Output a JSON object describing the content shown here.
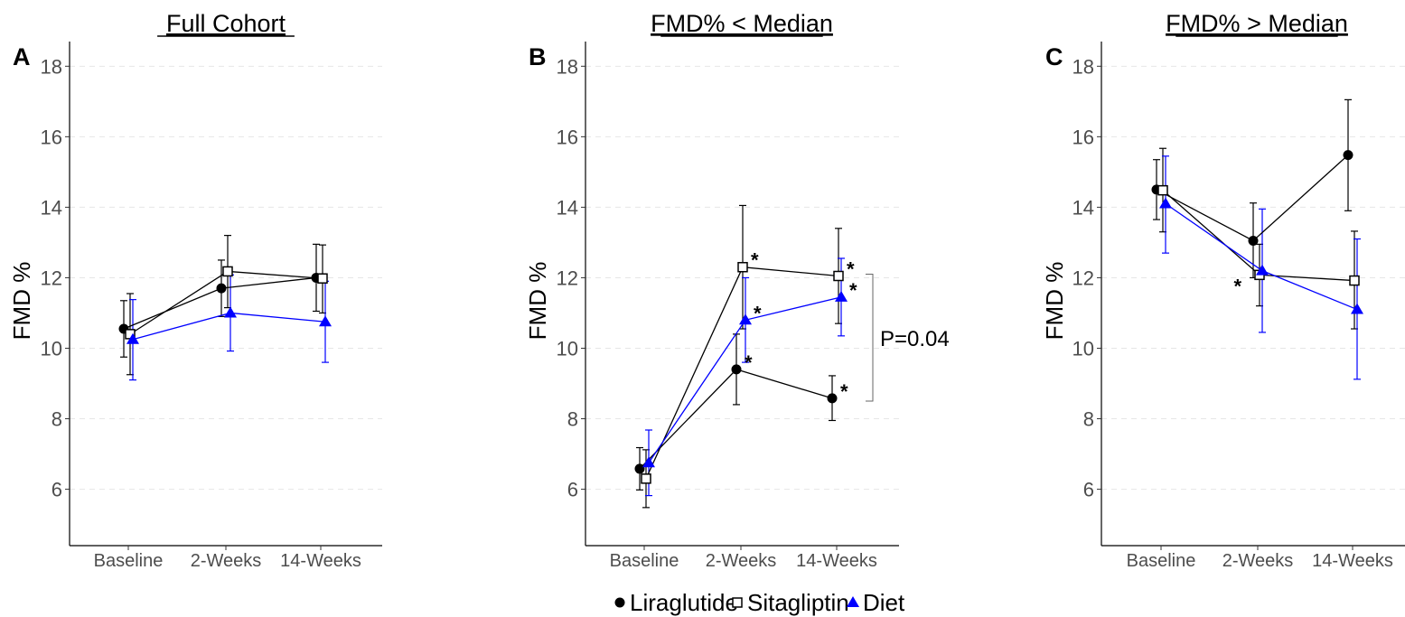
{
  "chart_data": [
    {
      "type": "line",
      "panel": "A",
      "title": "Full Cohort",
      "ylabel": "FMD %",
      "categories": [
        "Baseline",
        "2-Weeks",
        "14-Weeks"
      ],
      "ylim": [
        4.4,
        18.7
      ],
      "yticks": [
        6,
        8,
        10,
        12,
        14,
        16,
        18
      ],
      "grid": "horizontal-dashed",
      "series": [
        {
          "name": "Liraglutide",
          "color": "#000000",
          "marker": "filled-circle",
          "values": [
            10.55,
            11.7,
            12.0
          ],
          "lower": [
            9.75,
            10.9,
            11.05
          ],
          "upper": [
            11.35,
            12.5,
            12.95
          ]
        },
        {
          "name": "Sitagliptin",
          "color": "#000000",
          "marker": "open-square",
          "values": [
            10.4,
            12.18,
            11.98
          ],
          "lower": [
            9.25,
            11.15,
            11.0
          ],
          "upper": [
            11.55,
            13.2,
            12.93
          ]
        },
        {
          "name": "Diet",
          "color": "#0000ff",
          "marker": "filled-triangle",
          "values": [
            10.25,
            11.0,
            10.75
          ],
          "lower": [
            9.1,
            9.92,
            9.6
          ],
          "upper": [
            11.38,
            12.08,
            11.9
          ]
        }
      ],
      "stars": [],
      "bracket": null
    },
    {
      "type": "line",
      "panel": "B",
      "title": "FMD% < Median",
      "ylabel": "FMD %",
      "categories": [
        "Baseline",
        "2-Weeks",
        "14-Weeks"
      ],
      "ylim": [
        4.4,
        18.7
      ],
      "yticks": [
        6,
        8,
        10,
        12,
        14,
        16,
        18
      ],
      "grid": "horizontal-dashed",
      "series": [
        {
          "name": "Liraglutide",
          "color": "#000000",
          "marker": "filled-circle",
          "values": [
            6.58,
            9.4,
            8.58
          ],
          "lower": [
            5.98,
            8.4,
            7.95
          ],
          "upper": [
            7.18,
            10.4,
            9.22
          ]
        },
        {
          "name": "Sitagliptin",
          "color": "#000000",
          "marker": "open-square",
          "values": [
            6.3,
            12.3,
            12.05
          ],
          "lower": [
            5.48,
            10.55,
            10.7
          ],
          "upper": [
            7.12,
            14.05,
            13.4
          ]
        },
        {
          "name": "Diet",
          "color": "#0000ff",
          "marker": "filled-triangle",
          "values": [
            6.75,
            10.8,
            11.45
          ],
          "lower": [
            5.82,
            9.6,
            10.35
          ],
          "upper": [
            7.68,
            12.0,
            12.55
          ]
        }
      ],
      "stars": [
        {
          "series": "Sitagliptin",
          "index": 1,
          "text": "*"
        },
        {
          "series": "Diet",
          "index": 1,
          "text": "*"
        },
        {
          "series": "Liraglutide",
          "index": 1,
          "text": "*"
        },
        {
          "series": "Sitagliptin",
          "index": 2,
          "text": "*"
        },
        {
          "series": "Diet",
          "index": 2,
          "text": "*"
        },
        {
          "series": "Liraglutide",
          "index": 2,
          "text": "*"
        }
      ],
      "bracket": {
        "from": 12.1,
        "to": 8.5,
        "label": "P=0.04"
      }
    },
    {
      "type": "line",
      "panel": "C",
      "title": "FMD% > Median",
      "ylabel": "FMD %",
      "categories": [
        "Baseline",
        "2-Weeks",
        "14-Weeks"
      ],
      "ylim": [
        4.4,
        18.7
      ],
      "yticks": [
        6,
        8,
        10,
        12,
        14,
        16,
        18
      ],
      "grid": "horizontal-dashed",
      "series": [
        {
          "name": "Liraglutide",
          "color": "#000000",
          "marker": "filled-circle",
          "values": [
            14.5,
            13.05,
            15.48
          ],
          "lower": [
            13.65,
            12.0,
            13.9
          ],
          "upper": [
            15.35,
            14.12,
            17.05
          ]
        },
        {
          "name": "Sitagliptin",
          "color": "#000000",
          "marker": "open-square",
          "values": [
            14.48,
            12.08,
            11.92
          ],
          "lower": [
            13.3,
            11.2,
            10.55
          ],
          "upper": [
            15.67,
            12.95,
            13.32
          ]
        },
        {
          "name": "Diet",
          "color": "#0000ff",
          "marker": "filled-triangle",
          "values": [
            14.1,
            12.2,
            11.1
          ],
          "lower": [
            12.7,
            10.45,
            9.12
          ],
          "upper": [
            15.45,
            13.95,
            13.1
          ]
        }
      ],
      "stars": [
        {
          "series": "Sitagliptin",
          "index": 1,
          "text": "*",
          "side": "left"
        }
      ],
      "bracket": null
    }
  ],
  "legend": {
    "position": "bottom-center",
    "items": [
      {
        "label": "Liraglutide",
        "marker": "filled-circle",
        "color": "#000000"
      },
      {
        "label": "Sitagliptin",
        "marker": "open-square",
        "color": "#000000"
      },
      {
        "label": "Diet",
        "marker": "filled-triangle",
        "color": "#0000ff"
      }
    ]
  }
}
